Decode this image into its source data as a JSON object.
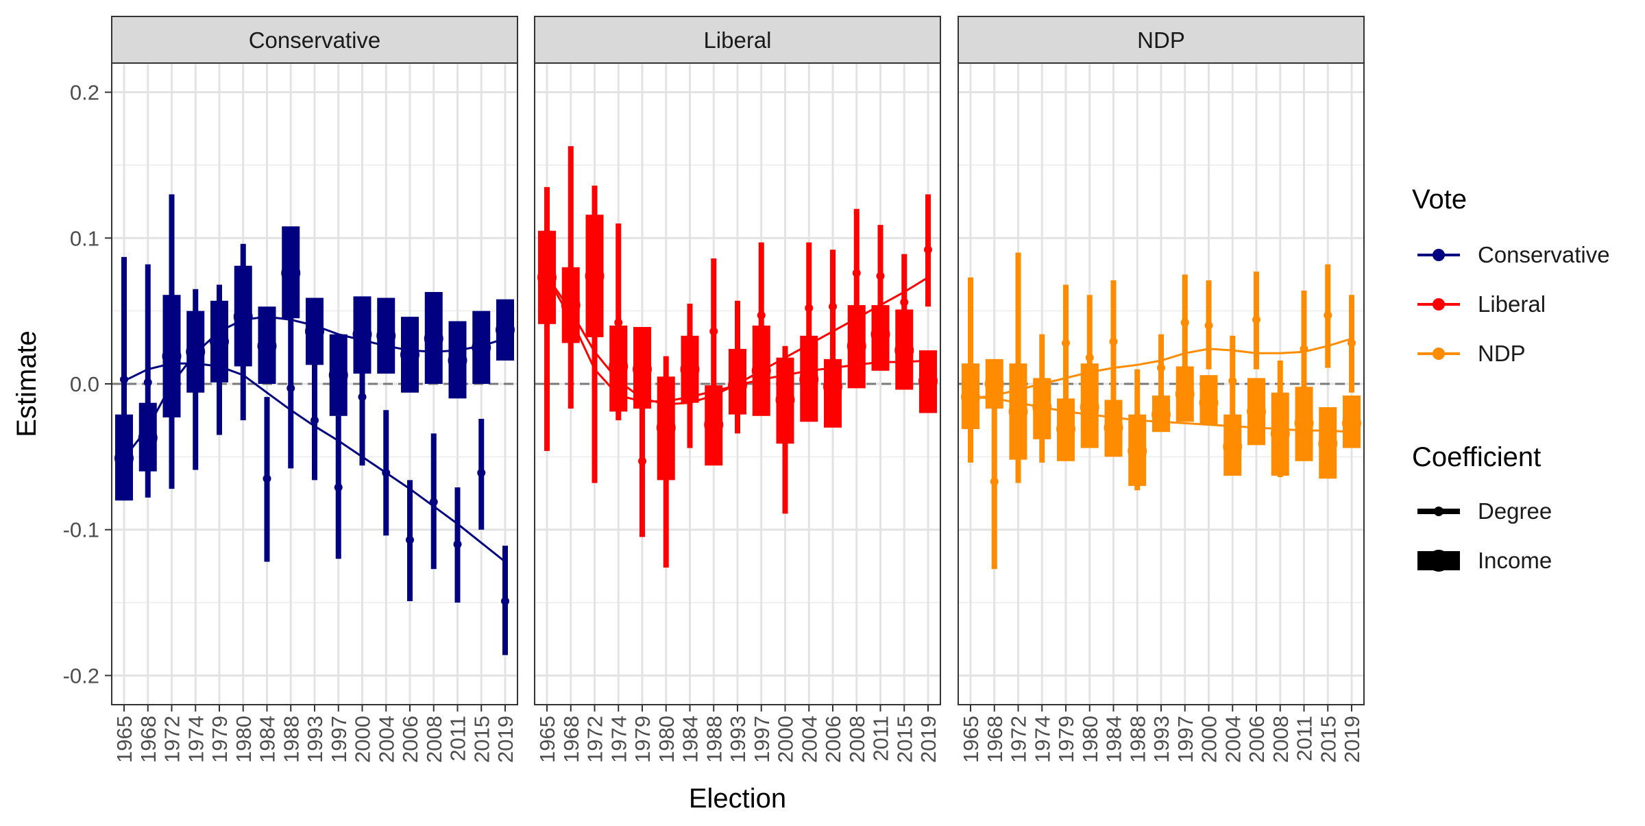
{
  "chart_data": {
    "type": "faceted_point_range",
    "xlabel": "Election",
    "ylabel": "Estimate",
    "ylim": [
      -0.22,
      0.22
    ],
    "yticks": [
      -0.2,
      -0.1,
      0.0,
      0.1,
      0.2
    ],
    "ytick_labels": [
      "-0.2",
      "-0.1",
      "0.0",
      "0.1",
      "0.2"
    ],
    "reference_line": 0.0,
    "categories": [
      "1965",
      "1968",
      "1972",
      "1974",
      "1979",
      "1980",
      "1984",
      "1988",
      "1993",
      "1997",
      "2000",
      "2004",
      "2006",
      "2008",
      "2011",
      "2015",
      "2019"
    ],
    "legend": {
      "color_title": "Vote",
      "color_entries": [
        {
          "name": "Conservative",
          "color": "#000080"
        },
        {
          "name": "Liberal",
          "color": "#FF0000"
        },
        {
          "name": "NDP",
          "color": "#FF8C00"
        }
      ],
      "shape_title": "Coefficient",
      "shape_entries": [
        "Degree",
        "Income"
      ],
      "position": "right"
    },
    "panels": [
      {
        "strip": "Conservative",
        "color": "#000080",
        "series": [
          {
            "coefficient": "Degree",
            "estimate": [
              0.003,
              0.001,
              0.029,
              0.003,
              0.017,
              0.035,
              -0.065,
              -0.003,
              -0.025,
              -0.071,
              -0.009,
              -0.061,
              -0.107,
              -0.081,
              -0.11,
              -0.061,
              -0.149
            ],
            "lower": [
              -0.08,
              -0.078,
              -0.072,
              -0.059,
              -0.035,
              -0.025,
              -0.122,
              -0.058,
              -0.066,
              -0.12,
              -0.056,
              -0.104,
              -0.149,
              -0.127,
              -0.15,
              -0.1,
              -0.186
            ],
            "upper": [
              0.087,
              0.082,
              0.13,
              0.065,
              0.068,
              0.096,
              -0.009,
              0.053,
              0.016,
              -0.022,
              0.038,
              -0.018,
              -0.066,
              -0.034,
              -0.071,
              -0.024,
              -0.111
            ],
            "trend": [
              0.002,
              0.01,
              0.014,
              0.014,
              0.012,
              0.006,
              -0.006,
              -0.018,
              -0.029,
              -0.039,
              -0.05,
              -0.061,
              -0.072,
              -0.084,
              -0.096,
              -0.109,
              -0.122
            ]
          },
          {
            "coefficient": "Income",
            "estimate": [
              -0.051,
              -0.037,
              0.019,
              0.022,
              0.029,
              0.046,
              0.026,
              0.076,
              0.036,
              0.006,
              0.034,
              0.033,
              0.02,
              0.031,
              0.016,
              0.025,
              0.037
            ],
            "lower": [
              -0.08,
              -0.06,
              -0.023,
              -0.006,
              0.001,
              0.012,
              0.0,
              0.045,
              0.013,
              -0.022,
              0.007,
              0.007,
              -0.006,
              0.0,
              -0.01,
              0.0,
              0.016
            ],
            "upper": [
              -0.021,
              -0.013,
              0.061,
              0.05,
              0.057,
              0.081,
              0.053,
              0.108,
              0.059,
              0.034,
              0.06,
              0.059,
              0.046,
              0.063,
              0.043,
              0.05,
              0.058
            ],
            "trend": [
              -0.051,
              -0.03,
              0.0,
              0.021,
              0.036,
              0.044,
              0.046,
              0.044,
              0.04,
              0.034,
              0.03,
              0.026,
              0.023,
              0.022,
              0.023,
              0.026,
              0.031
            ]
          }
        ]
      },
      {
        "strip": "Liberal",
        "color": "#FF0000",
        "series": [
          {
            "coefficient": "Degree",
            "estimate": [
              0.074,
              0.056,
              0.072,
              0.042,
              -0.053,
              -0.029,
              0.006,
              0.036,
              0.001,
              0.047,
              -0.01,
              0.052,
              0.053,
              0.076,
              0.074,
              0.056,
              0.092
            ],
            "lower": [
              -0.046,
              -0.017,
              -0.068,
              -0.025,
              -0.105,
              -0.126,
              -0.044,
              -0.015,
              -0.034,
              -0.003,
              -0.089,
              0.003,
              0.015,
              0.035,
              0.036,
              0.022,
              0.053
            ],
            "upper": [
              0.135,
              0.163,
              0.136,
              0.11,
              0.03,
              0.019,
              0.055,
              0.086,
              0.057,
              0.097,
              0.026,
              0.097,
              0.092,
              0.12,
              0.109,
              0.089,
              0.13
            ],
            "trend": [
              0.074,
              0.05,
              0.022,
              0.002,
              -0.01,
              -0.014,
              -0.013,
              -0.008,
              0.0,
              0.009,
              0.018,
              0.027,
              0.036,
              0.045,
              0.054,
              0.063,
              0.073
            ]
          },
          {
            "coefficient": "Income",
            "estimate": [
              0.073,
              0.054,
              0.074,
              0.012,
              0.01,
              -0.03,
              0.01,
              -0.028,
              -0.001,
              0.009,
              -0.011,
              0.003,
              -0.002,
              0.026,
              0.034,
              0.023,
              0.002
            ],
            "lower": [
              0.041,
              0.028,
              0.032,
              -0.019,
              -0.017,
              -0.066,
              -0.013,
              -0.056,
              -0.021,
              -0.022,
              -0.041,
              -0.026,
              -0.03,
              -0.003,
              0.009,
              -0.004,
              -0.02
            ],
            "upper": [
              0.105,
              0.08,
              0.116,
              0.04,
              0.039,
              0.005,
              0.033,
              -0.001,
              0.024,
              0.04,
              0.018,
              0.033,
              0.017,
              0.054,
              0.054,
              0.051,
              0.023
            ],
            "trend": [
              0.073,
              0.045,
              0.01,
              -0.008,
              -0.012,
              -0.012,
              -0.009,
              -0.005,
              -0.001,
              0.003,
              0.006,
              0.009,
              0.011,
              0.013,
              0.015,
              0.015,
              0.016
            ]
          }
        ]
      },
      {
        "strip": "NDP",
        "color": "#FF8C00",
        "series": [
          {
            "coefficient": "Degree",
            "estimate": [
              -0.01,
              -0.067,
              -0.009,
              -0.011,
              0.028,
              0.018,
              0.029,
              -0.05,
              0.011,
              0.042,
              0.04,
              0.002,
              0.044,
              -0.013,
              0.024,
              0.047,
              0.028
            ],
            "lower": [
              -0.054,
              -0.127,
              -0.068,
              -0.054,
              -0.016,
              -0.025,
              -0.014,
              -0.073,
              -0.01,
              0.01,
              0.01,
              -0.029,
              0.01,
              -0.064,
              -0.016,
              0.011,
              -0.006
            ],
            "upper": [
              0.073,
              0.015,
              0.09,
              0.034,
              0.068,
              0.061,
              0.071,
              0.01,
              0.034,
              0.075,
              0.071,
              0.033,
              0.077,
              0.016,
              0.064,
              0.082,
              0.061
            ],
            "trend": [
              -0.01,
              -0.008,
              -0.004,
              0.0,
              0.004,
              0.008,
              0.011,
              0.013,
              0.016,
              0.021,
              0.024,
              0.023,
              0.021,
              0.021,
              0.022,
              0.026,
              0.031
            ]
          },
          {
            "coefficient": "Income",
            "estimate": [
              -0.009,
              0.0,
              -0.019,
              -0.016,
              -0.031,
              -0.016,
              -0.03,
              -0.046,
              -0.021,
              -0.007,
              -0.013,
              -0.043,
              -0.019,
              -0.034,
              -0.027,
              -0.041,
              -0.027
            ],
            "lower": [
              -0.031,
              -0.017,
              -0.052,
              -0.038,
              -0.053,
              -0.044,
              -0.05,
              -0.07,
              -0.033,
              -0.026,
              -0.028,
              -0.063,
              -0.042,
              -0.063,
              -0.053,
              -0.065,
              -0.044
            ],
            "upper": [
              0.014,
              0.017,
              0.014,
              0.004,
              -0.01,
              0.014,
              -0.011,
              -0.021,
              -0.008,
              0.012,
              0.006,
              -0.021,
              0.004,
              -0.006,
              -0.002,
              -0.016,
              -0.008
            ],
            "trend": [
              -0.009,
              -0.01,
              -0.013,
              -0.016,
              -0.019,
              -0.021,
              -0.023,
              -0.025,
              -0.026,
              -0.027,
              -0.028,
              -0.029,
              -0.03,
              -0.031,
              -0.032,
              -0.032,
              -0.033
            ]
          }
        ]
      }
    ]
  }
}
